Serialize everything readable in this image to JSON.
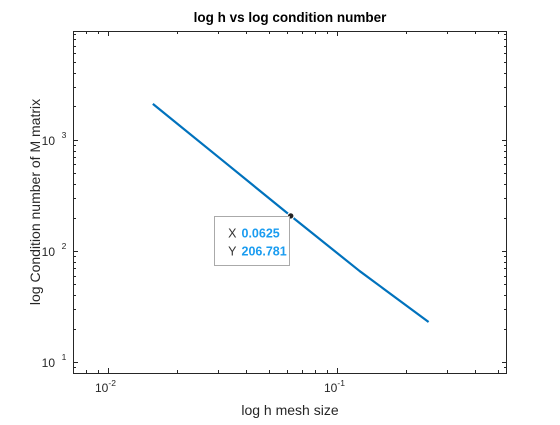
{
  "chart_data": {
    "type": "line",
    "title": "log h vs log condition number",
    "xlabel": "log h mesh size",
    "ylabel": "log Condition number of M matrix",
    "xscale": "log",
    "yscale": "log",
    "xlim": [
      0.007,
      0.55
    ],
    "ylim": [
      8,
      9500
    ],
    "grid": false,
    "x_ticks": [
      {
        "base": "10",
        "exponent": "-2",
        "value": 0.01
      },
      {
        "base": "10",
        "exponent": "-1",
        "value": 0.1
      }
    ],
    "y_ticks": [
      {
        "base": "10",
        "exponent": "1",
        "value": 10
      },
      {
        "base": "10",
        "exponent": "2",
        "value": 100
      },
      {
        "base": "10",
        "exponent": "3",
        "value": 1000
      }
    ],
    "series": [
      {
        "color": "#0072BD",
        "x": [
          0.015625,
          0.03125,
          0.0625,
          0.125,
          0.25
        ],
        "y": [
          2100,
          660,
          206.781,
          66,
          23
        ]
      }
    ],
    "datatip": {
      "x_label": "X",
      "x_value": "0.0625",
      "y_label": "Y",
      "y_value": "206.781",
      "x": 0.0625,
      "y": 206.781,
      "value_color": "#1a9cf0"
    }
  }
}
